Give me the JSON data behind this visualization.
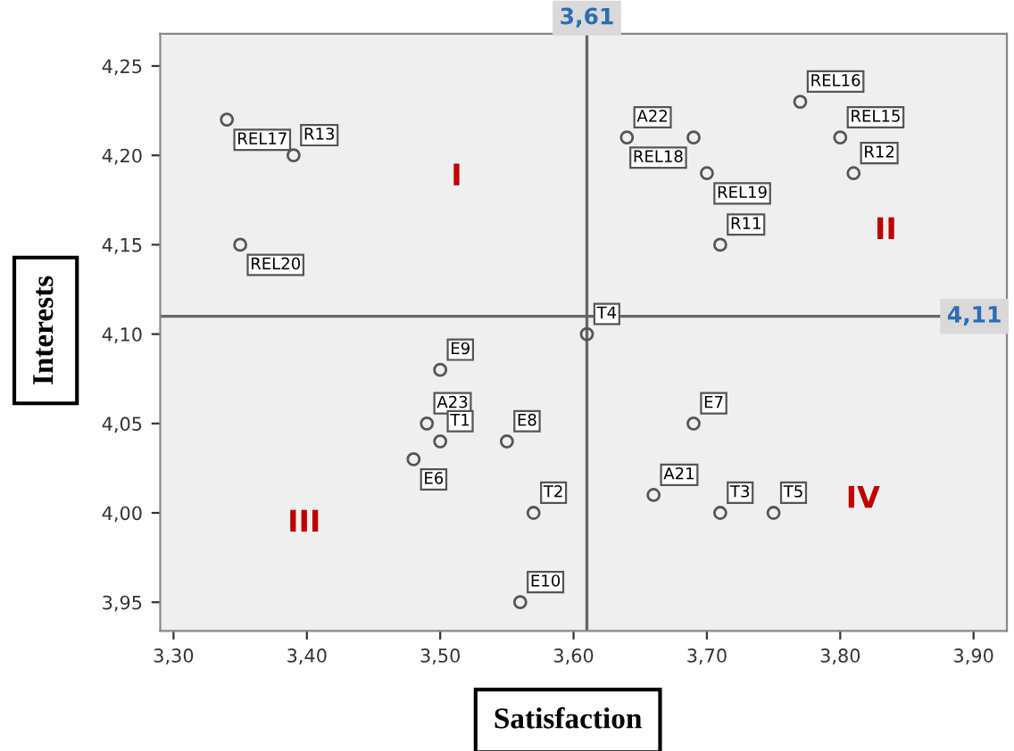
{
  "chart_data": {
    "type": "scatter",
    "xlabel": "Satisfaction",
    "ylabel": "Interests",
    "series": [
      {
        "color": "#555555",
        "x": [
          3.34,
          3.39,
          3.35,
          3.61,
          3.64,
          3.69,
          3.77,
          3.8,
          3.81,
          3.7,
          3.71,
          3.5,
          3.49,
          3.5,
          3.55,
          3.48,
          3.57,
          3.56,
          3.69,
          3.66,
          3.71,
          3.75
        ],
        "values": [
          4.22,
          4.2,
          4.15,
          4.1,
          4.21,
          4.21,
          4.23,
          4.21,
          4.19,
          4.19,
          4.15,
          4.08,
          4.05,
          4.04,
          4.04,
          4.03,
          4.0,
          3.95,
          4.05,
          4.01,
          4.0,
          4.0
        ]
      }
    ],
    "marker": "circle",
    "grid": false,
    "xlim": [
      3.29,
      3.925
    ],
    "ylim": [
      3.934,
      4.268
    ],
    "xticks": [
      {
        "value": 3.3,
        "label": "3,30"
      },
      {
        "value": 3.4,
        "label": "3,40"
      },
      {
        "value": 3.5,
        "label": "3,50"
      },
      {
        "value": 3.6,
        "label": "3,60"
      },
      {
        "value": 3.7,
        "label": "3,70"
      },
      {
        "value": 3.8,
        "label": "3,80"
      },
      {
        "value": 3.9,
        "label": "3,90"
      }
    ],
    "yticks": [
      {
        "value": 3.95,
        "label": "3,95"
      },
      {
        "value": 4.0,
        "label": "4,00"
      },
      {
        "value": 4.05,
        "label": "4,05"
      },
      {
        "value": 4.1,
        "label": "4,10"
      },
      {
        "value": 4.15,
        "label": "4,15"
      },
      {
        "value": 4.2,
        "label": "4,20"
      },
      {
        "value": 4.25,
        "label": "4,25"
      }
    ],
    "ref_lines": [
      {
        "axis": "x",
        "value": 3.61,
        "label": "3,61",
        "color": "#666666"
      },
      {
        "axis": "y",
        "value": 4.11,
        "label": "4,11",
        "color": "#666666"
      }
    ],
    "annotations": [
      {
        "text": "REL17",
        "x": 3.34,
        "y": 4.22
      },
      {
        "text": "R13",
        "x": 3.39,
        "y": 4.2
      },
      {
        "text": "REL20",
        "x": 3.35,
        "y": 4.15
      },
      {
        "text": "T4",
        "x": 3.61,
        "y": 4.1
      },
      {
        "text": "A22",
        "x": 3.64,
        "y": 4.21
      },
      {
        "text": "REL18",
        "x": 3.69,
        "y": 4.21
      },
      {
        "text": "REL16",
        "x": 3.77,
        "y": 4.23
      },
      {
        "text": "REL15",
        "x": 3.8,
        "y": 4.21
      },
      {
        "text": "R12",
        "x": 3.81,
        "y": 4.19
      },
      {
        "text": "REL19",
        "x": 3.7,
        "y": 4.19
      },
      {
        "text": "R11",
        "x": 3.71,
        "y": 4.15
      },
      {
        "text": "E9",
        "x": 3.5,
        "y": 4.08
      },
      {
        "text": "A23",
        "x": 3.49,
        "y": 4.05
      },
      {
        "text": "T1",
        "x": 3.5,
        "y": 4.04
      },
      {
        "text": "E8",
        "x": 3.55,
        "y": 4.04
      },
      {
        "text": "E6",
        "x": 3.48,
        "y": 4.03
      },
      {
        "text": "T2",
        "x": 3.57,
        "y": 4.0
      },
      {
        "text": "E10",
        "x": 3.56,
        "y": 3.95
      },
      {
        "text": "E7",
        "x": 3.69,
        "y": 4.05
      },
      {
        "text": "A21",
        "x": 3.66,
        "y": 4.01
      },
      {
        "text": "T3",
        "x": 3.71,
        "y": 4.0
      },
      {
        "text": "T5",
        "x": 3.75,
        "y": 4.0
      },
      "I",
      "II",
      "III",
      "IV"
    ]
  }
}
